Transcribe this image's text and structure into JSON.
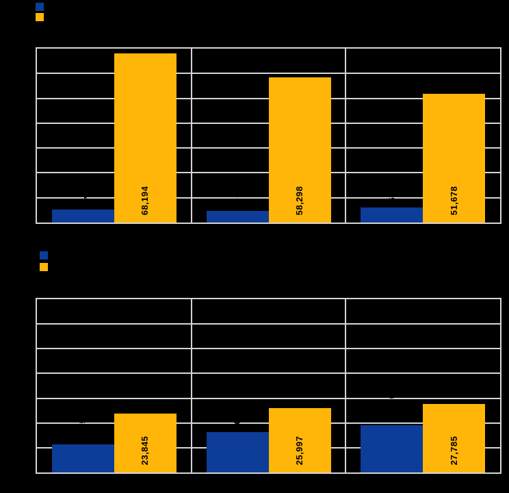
{
  "page": {
    "background": "#000000",
    "gridline_color": "#d6d6d6",
    "bar_label_color": "#000000"
  },
  "chart_data": [
    {
      "type": "bar",
      "title": "",
      "xlabel": "",
      "ylabel": "",
      "categories": [
        "",
        "",
        ""
      ],
      "ylim": [
        0,
        70000
      ],
      "gridline_step": 10000,
      "grid": true,
      "legend_position": "top-left",
      "series": [
        {
          "name": "blue-series",
          "color": "#0d3d98",
          "legend_label": "",
          "values": [
            5200,
            4600,
            6000
          ],
          "labels": [
            "5,200",
            "4,600",
            "6,000"
          ],
          "labels_readable": false,
          "estimated_from_pixels": true
        },
        {
          "name": "orange-series",
          "color": "#ffb608",
          "legend_label": "",
          "values": [
            68194,
            58298,
            51678
          ],
          "labels": [
            "68,194",
            "58,298",
            "51,678"
          ],
          "labels_readable": true,
          "estimated_from_pixels": false
        }
      ]
    },
    {
      "type": "bar",
      "title": "",
      "xlabel": "",
      "ylabel": "",
      "categories": [
        "",
        "",
        ""
      ],
      "ylim": [
        0,
        70000
      ],
      "gridline_step": 10000,
      "grid": true,
      "legend_position": "top-left",
      "series": [
        {
          "name": "blue-series",
          "color": "#0d3d98",
          "legend_label": "",
          "values": [
            11250,
            16350,
            19050
          ],
          "labels": [
            "11,250",
            "16,350",
            "19,050"
          ],
          "labels_readable": false,
          "estimated_from_pixels": true
        },
        {
          "name": "orange-series",
          "color": "#ffb608",
          "legend_label": "",
          "values": [
            23845,
            25997,
            27785
          ],
          "labels": [
            "23,845",
            "25,997",
            "27,785"
          ],
          "labels_readable": true,
          "estimated_from_pixels": false
        }
      ]
    }
  ]
}
